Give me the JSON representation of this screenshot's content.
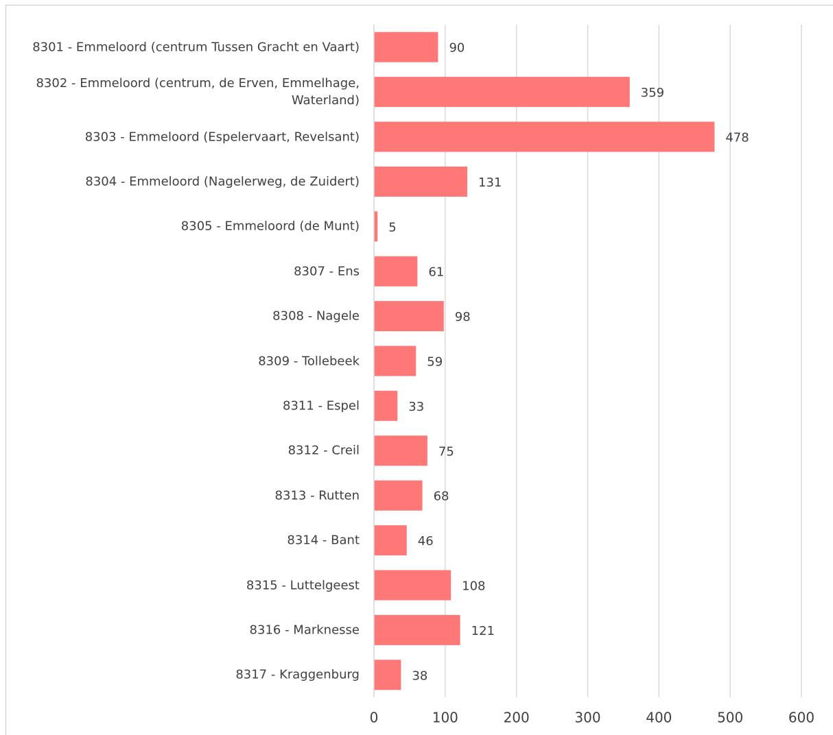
{
  "chart_data": {
    "type": "bar",
    "orientation": "horizontal",
    "categories": [
      "8301 - Emmeloord (centrum Tussen Gracht en Vaart)",
      "8302 - Emmeloord (centrum, de Erven, Emmelhage, Waterland)",
      "8303 - Emmeloord (Espelervaart, Revelsant)",
      "8304 - Emmeloord (Nagelerweg, de Zuidert)",
      "8305 - Emmeloord (de Munt)",
      "8307 - Ens",
      "8308 - Nagele",
      "8309 - Tollebeek",
      "8311 - Espel",
      "8312 - Creil",
      "8313 - Rutten",
      "8314 - Bant",
      "8315 - Luttelgeest",
      "8316 - Marknesse",
      "8317 - Kraggenburg"
    ],
    "values": [
      90,
      359,
      478,
      131,
      5,
      61,
      98,
      59,
      33,
      75,
      68,
      46,
      108,
      121,
      38
    ],
    "color": "#ff7878",
    "xlim": [
      0,
      600
    ],
    "xticks": [
      0,
      100,
      200,
      300,
      400,
      500,
      600
    ],
    "grid": true
  }
}
